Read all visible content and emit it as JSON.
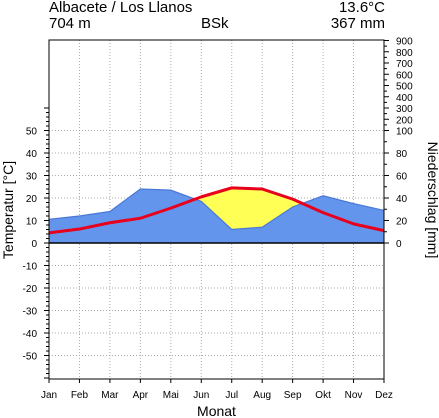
{
  "header": {
    "station": "Albacete / Los Llanos",
    "mean_temperature": "13.6°C",
    "elevation": "704 m",
    "climate_class": "BSk",
    "annual_precipitation": "367 mm"
  },
  "chart_data": {
    "type": "climate-diagram",
    "categories": [
      "Jan",
      "Feb",
      "Mar",
      "Apr",
      "Mai",
      "Jun",
      "Jul",
      "Aug",
      "Sep",
      "Okt",
      "Nov",
      "Dez"
    ],
    "xlabel": "Monat",
    "ylabel_left": "Temperatur [°C]",
    "ylabel_right": "Niederschlag [mm]",
    "temperature_axis": {
      "range": [
        -60,
        60
      ],
      "ticks": [
        50,
        40,
        30,
        20,
        10,
        0,
        -10,
        -20,
        -30,
        -40,
        -50
      ]
    },
    "precipitation_axis": {
      "ticks": [
        0,
        20,
        40,
        60,
        80,
        100,
        200,
        300,
        400,
        500,
        600,
        700,
        800,
        900
      ],
      "scale_note": "20 mm = 10 °C up to 100 mm, compressed above"
    },
    "grid": true,
    "series": [
      {
        "name": "Temperatur",
        "unit": "°C",
        "color": "#e8001c",
        "values": [
          4.5,
          6.2,
          9.0,
          11.0,
          15.5,
          20.5,
          24.5,
          24.0,
          19.5,
          13.5,
          8.5,
          5.5
        ]
      },
      {
        "name": "Niederschlag",
        "unit": "mm",
        "color": "#6495ed",
        "values": [
          21,
          24,
          28,
          48,
          47,
          37,
          12,
          14,
          32,
          42,
          35,
          29
        ]
      }
    ],
    "colors": {
      "humid": "#6495ed",
      "arid": "#ffff55",
      "zero_line": "#000000",
      "grid": "#aaaaaa"
    }
  }
}
